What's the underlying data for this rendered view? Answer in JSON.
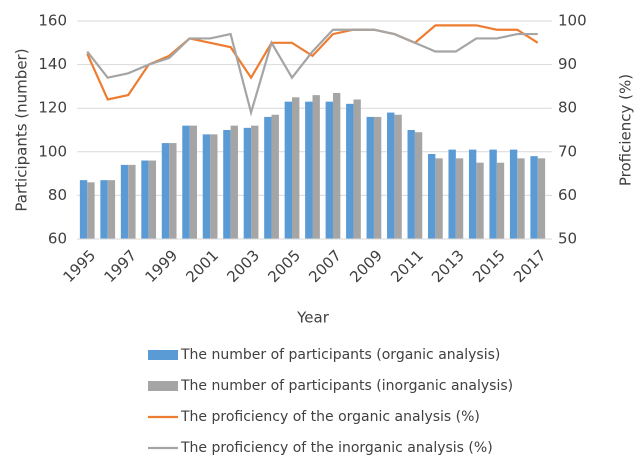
{
  "chart_data": {
    "type": "bar",
    "x_label": "Year",
    "y_label": "Participants (number)",
    "y2_label": "Proficiency (%)",
    "categories": [
      "1995",
      null,
      "1997",
      null,
      "1999",
      null,
      "2001",
      null,
      "2003",
      null,
      "2005",
      null,
      "2007",
      null,
      "2009",
      null,
      "2011",
      null,
      "2013",
      null,
      "2015",
      null,
      "2017"
    ],
    "series": [
      {
        "name": "The number of participants (organic analysis)",
        "type": "bar",
        "color": "#5b9bd5",
        "values": [
          87,
          87,
          94,
          96,
          104,
          112,
          108,
          110,
          111,
          116,
          123,
          123,
          123,
          122,
          116,
          118,
          110,
          99,
          101,
          101,
          101,
          101,
          98
        ]
      },
      {
        "name": "The number of participants (inorganic analysis)",
        "type": "bar",
        "color": "#a5a5a5",
        "values": [
          86,
          87,
          94,
          96,
          104,
          112,
          108,
          112,
          112,
          117,
          125,
          126,
          127,
          124,
          116,
          117,
          109,
          97,
          97,
          95,
          95,
          97,
          97
        ]
      },
      {
        "name": "The proficiency of the organic analysis (%)",
        "type": "line",
        "axis": "y2",
        "color": "#ed7d31",
        "values": [
          92.5,
          82,
          83,
          90,
          92,
          96,
          95,
          94,
          87,
          95,
          95,
          92,
          97,
          98,
          98,
          97,
          95,
          99,
          99,
          99,
          98,
          98,
          95
        ]
      },
      {
        "name": "The proficiency of the inorganic analysis (%)",
        "type": "line",
        "axis": "y2",
        "color": "#a5a5a5",
        "values": [
          93,
          87,
          88,
          90,
          91.5,
          96,
          96,
          97,
          79,
          95,
          87,
          93,
          98,
          98,
          98,
          97,
          95,
          93,
          93,
          96,
          96,
          97,
          97
        ]
      }
    ],
    "ylim": [
      60,
      160
    ],
    "yticks": [
      60,
      80,
      100,
      120,
      140,
      160
    ],
    "y2lim": [
      50,
      100
    ],
    "y2ticks": [
      50,
      60,
      70,
      80,
      90,
      100
    ],
    "grid": true
  }
}
